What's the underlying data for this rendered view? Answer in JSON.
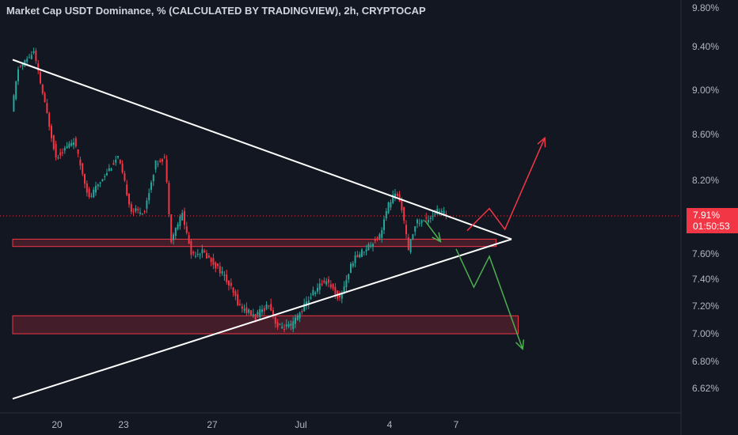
{
  "chart_data": {
    "type": "candlestick",
    "title": "Market Cap USDT Dominance, % (CALCULATED BY TRADINGVIEW), 2h, CRYPTOCAP",
    "y_unit": "%",
    "y_ticks": [
      "9.80%",
      "9.40%",
      "9.00%",
      "8.60%",
      "8.20%",
      "7.60%",
      "7.40%",
      "7.20%",
      "7.00%",
      "6.80%",
      "6.62%"
    ],
    "x_ticks": [
      "20",
      "23",
      "27",
      "Jul",
      "4",
      "7"
    ],
    "current_price": "7.91%",
    "countdown": "01:50:53",
    "colors": {
      "up": "#26a69a",
      "down": "#f23645",
      "background": "#131722",
      "trendline": "#ffffff",
      "zone": "#f23645"
    },
    "price_path": [
      {
        "t": 0.0,
        "v": 8.8
      },
      {
        "t": 0.3,
        "v": 9.2
      },
      {
        "t": 1.0,
        "v": 9.35
      },
      {
        "t": 2.0,
        "v": 8.4
      },
      {
        "t": 2.8,
        "v": 8.55
      },
      {
        "t": 3.5,
        "v": 8.05
      },
      {
        "t": 4.2,
        "v": 8.25
      },
      {
        "t": 4.8,
        "v": 8.4
      },
      {
        "t": 5.4,
        "v": 7.95
      },
      {
        "t": 6.0,
        "v": 7.95
      },
      {
        "t": 6.5,
        "v": 8.35
      },
      {
        "t": 6.9,
        "v": 8.4
      },
      {
        "t": 7.2,
        "v": 7.72
      },
      {
        "t": 7.7,
        "v": 7.93
      },
      {
        "t": 8.1,
        "v": 7.6
      },
      {
        "t": 8.6,
        "v": 7.62
      },
      {
        "t": 9.5,
        "v": 7.45
      },
      {
        "t": 10.3,
        "v": 7.2
      },
      {
        "t": 11.0,
        "v": 7.12
      },
      {
        "t": 11.6,
        "v": 7.22
      },
      {
        "t": 12.0,
        "v": 7.05
      },
      {
        "t": 12.6,
        "v": 7.05
      },
      {
        "t": 13.0,
        "v": 7.15
      },
      {
        "t": 13.6,
        "v": 7.3
      },
      {
        "t": 14.2,
        "v": 7.4
      },
      {
        "t": 14.8,
        "v": 7.25
      },
      {
        "t": 15.4,
        "v": 7.55
      },
      {
        "t": 16.0,
        "v": 7.65
      },
      {
        "t": 16.6,
        "v": 7.75
      },
      {
        "t": 17.0,
        "v": 8.0
      },
      {
        "t": 17.3,
        "v": 8.1
      },
      {
        "t": 17.6,
        "v": 7.98
      },
      {
        "t": 17.9,
        "v": 7.62
      },
      {
        "t": 18.2,
        "v": 7.85
      },
      {
        "t": 18.7,
        "v": 7.88
      },
      {
        "t": 19.2,
        "v": 7.95
      },
      {
        "t": 19.6,
        "v": 7.92
      }
    ],
    "trendlines": [
      {
        "name": "descending-resistance",
        "from": {
          "t": 0.0,
          "v": 9.28
        },
        "to": {
          "t": 22.5,
          "v": 7.72
        }
      },
      {
        "name": "ascending-support",
        "from": {
          "t": 0.0,
          "v": 6.55
        },
        "to": {
          "t": 22.5,
          "v": 7.72
        }
      }
    ],
    "zones": [
      {
        "name": "upper-support-zone",
        "t_from": 0.0,
        "t_to": 21.8,
        "v_low": 7.66,
        "v_high": 7.72
      },
      {
        "name": "lower-support-zone",
        "t_from": 0.0,
        "t_to": 22.8,
        "v_low": 7.0,
        "v_high": 7.13
      }
    ],
    "scenario_paths": [
      {
        "name": "bullish-scenario",
        "color": "#f23645",
        "points": [
          {
            "t": 20.5,
            "v": 7.79
          },
          {
            "t": 21.5,
            "v": 7.97
          },
          {
            "t": 22.2,
            "v": 7.8
          },
          {
            "t": 24.0,
            "v": 8.57
          }
        ]
      },
      {
        "name": "bearish-scenario",
        "color": "#4caf50",
        "points": [
          {
            "t": 20.0,
            "v": 7.64
          },
          {
            "t": 20.8,
            "v": 7.34
          },
          {
            "t": 21.5,
            "v": 7.58
          },
          {
            "t": 23.0,
            "v": 6.89
          }
        ]
      },
      {
        "name": "short-pullback",
        "color": "#4caf50",
        "points": [
          {
            "t": 18.6,
            "v": 7.87
          },
          {
            "t": 19.3,
            "v": 7.7
          }
        ]
      }
    ]
  }
}
